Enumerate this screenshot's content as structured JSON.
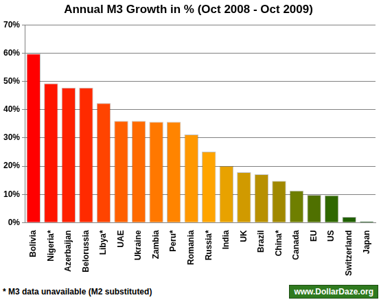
{
  "chart_data": {
    "type": "bar",
    "title": "Annual M3 Growth in % (Oct 2008 - Oct 2009)",
    "categories": [
      "Bolivia",
      "Nigeria*",
      "Azerbaijan",
      "Belorussia",
      "Libya*",
      "UAE",
      "Ukraine",
      "Zambia",
      "Peru*",
      "Romania",
      "Russia*",
      "India",
      "UK",
      "Brazil",
      "China*",
      "Canada",
      "EU",
      "US",
      "Switzerland",
      "Japan"
    ],
    "values": [
      59.8,
      49.3,
      47.8,
      47.8,
      42.3,
      36.0,
      36.0,
      35.7,
      35.7,
      31.2,
      25.1,
      20.1,
      17.8,
      17.1,
      14.8,
      11.3,
      9.8,
      9.7,
      2.0,
      0.5
    ],
    "colors": [
      "#ff0000",
      "#ff1500",
      "#ff2000",
      "#ff2a00",
      "#ff4400",
      "#ff6000",
      "#ff6a00",
      "#ff7800",
      "#ff8400",
      "#ff9800",
      "#ffa400",
      "#e8a200",
      "#d09a00",
      "#b89000",
      "#a08800",
      "#6f7f00",
      "#4f7000",
      "#306800",
      "#206000",
      "#005800"
    ],
    "ylim": [
      0,
      70
    ],
    "yticks": [
      {
        "value": 0,
        "label": "0%"
      },
      {
        "value": 10,
        "label": "10%"
      },
      {
        "value": 20,
        "label": "20%"
      },
      {
        "value": 30,
        "label": "30%"
      },
      {
        "value": 40,
        "label": "40%"
      },
      {
        "value": 50,
        "label": "50%"
      },
      {
        "value": 60,
        "label": "60%"
      },
      {
        "value": 70,
        "label": "70%"
      }
    ],
    "grid": true,
    "annotations": [
      "* M3 data unavailable (M2 substituted)",
      "www.DollarDaze.org"
    ]
  }
}
